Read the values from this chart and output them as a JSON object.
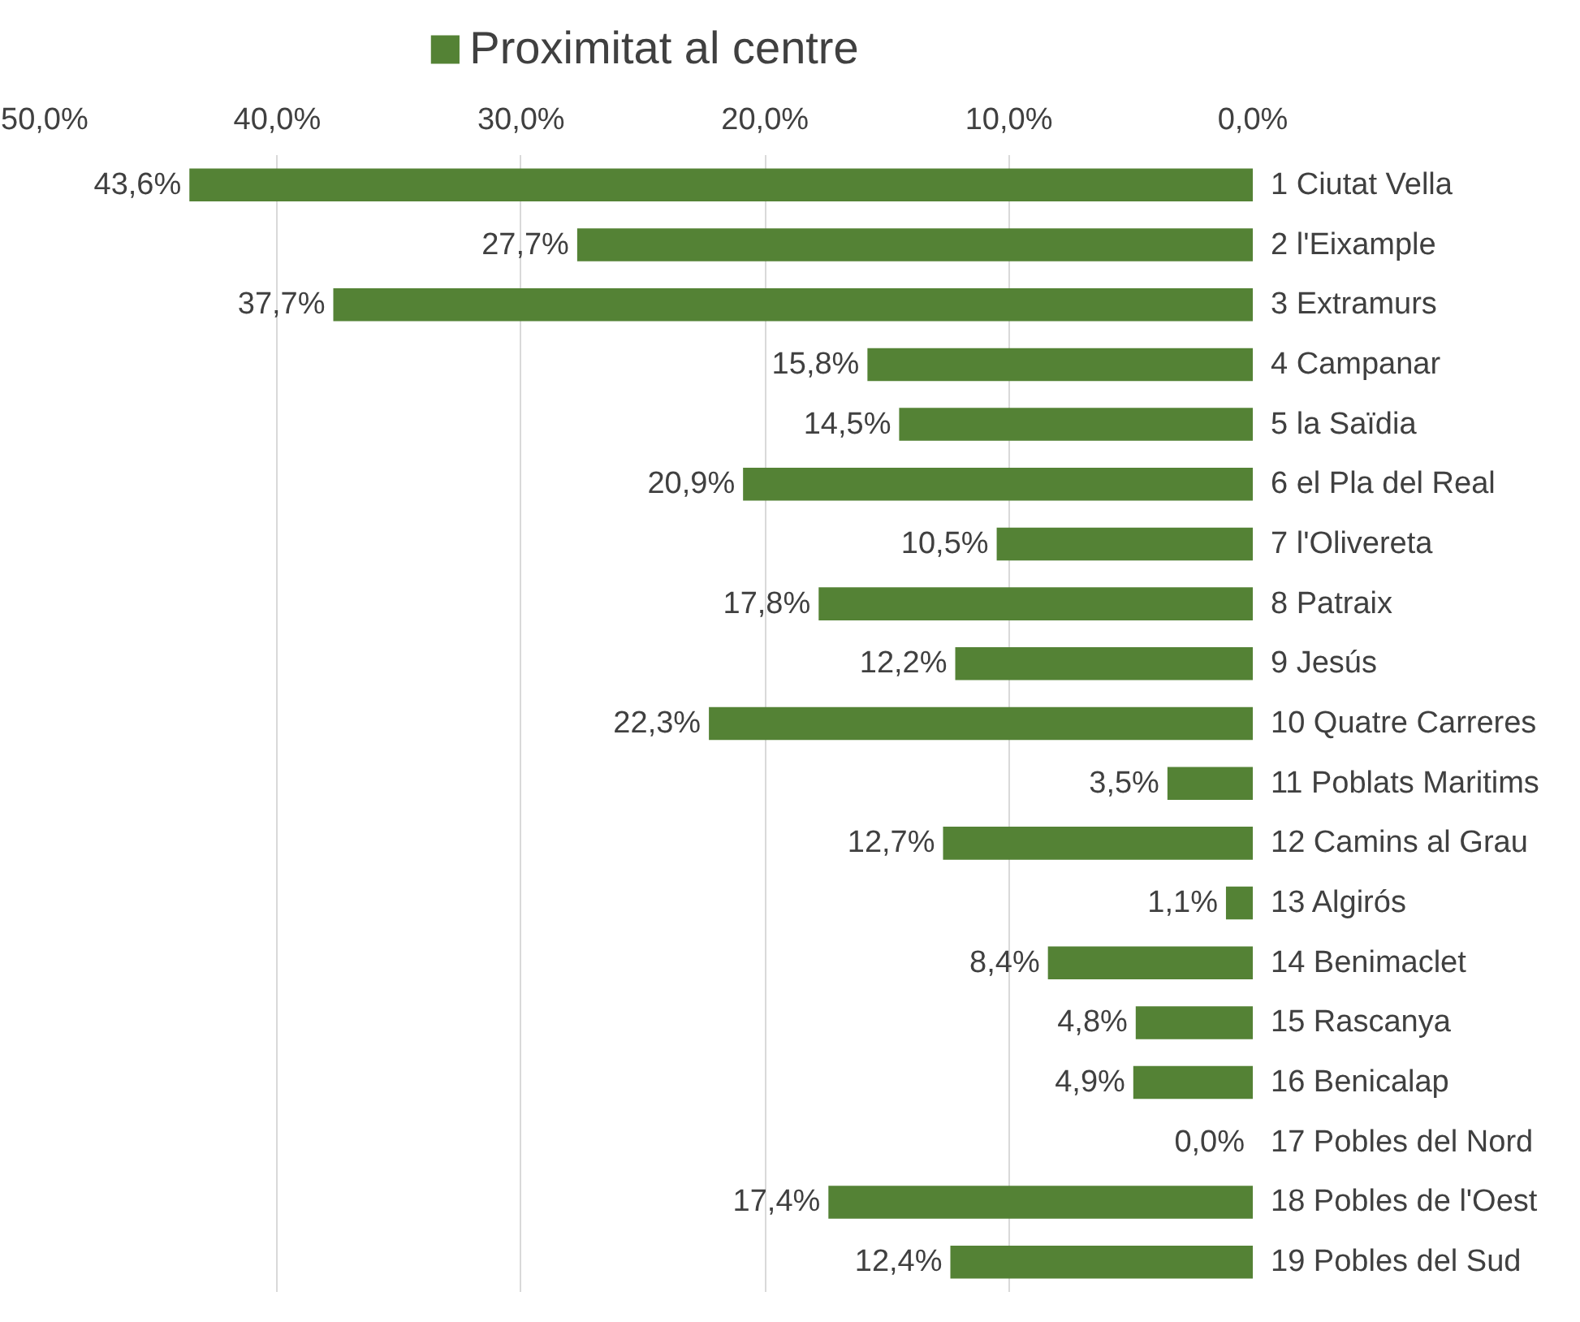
{
  "chart_data": {
    "type": "bar",
    "orientation": "horizontal",
    "categories": [
      "1 Ciutat Vella",
      "2 l'Eixample",
      "3 Extramurs",
      "4 Campanar",
      "5 la Saïdia",
      "6 el Pla del Real",
      "7 l'Olivereta",
      "8 Patraix",
      "9 Jesús",
      "10 Quatre Carreres",
      "11 Poblats Maritims",
      "12 Camins al Grau",
      "13 Algirós",
      "14 Benimaclet",
      "15 Rascanya",
      "16 Benicalap",
      "17 Pobles del Nord",
      "18 Pobles de l'Oest",
      "19 Pobles del Sud"
    ],
    "series": [
      {
        "name": "Proximitat al centre",
        "color": "#548235",
        "values": [
          43.6,
          27.7,
          37.7,
          15.8,
          14.5,
          20.9,
          10.5,
          17.8,
          12.2,
          22.3,
          3.5,
          12.7,
          1.1,
          8.4,
          4.8,
          4.9,
          0.0,
          17.4,
          12.4
        ],
        "value_labels": [
          "43,6%",
          "27,7%",
          "37,7%",
          "15,8%",
          "14,5%",
          "20,9%",
          "10,5%",
          "17,8%",
          "12,2%",
          "22,3%",
          "3,5%",
          "12,7%",
          "1,1%",
          "8,4%",
          "4,8%",
          "4,9%",
          "0,0%",
          "17,4%",
          "12,4%"
        ]
      }
    ],
    "xlim": [
      50,
      0
    ],
    "xticks": [
      {
        "value": 50,
        "label": "50,0%"
      },
      {
        "value": 40,
        "label": "40,0%"
      },
      {
        "value": 30,
        "label": "30,0%"
      },
      {
        "value": 20,
        "label": "20,0%"
      },
      {
        "value": 10,
        "label": "10,0%"
      },
      {
        "value": 0,
        "label": "0,0%"
      }
    ],
    "grid": "x",
    "legend": "top"
  }
}
